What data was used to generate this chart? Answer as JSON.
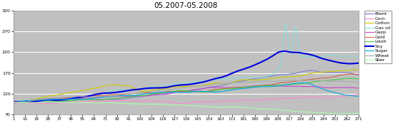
{
  "title": "05.2007-05.2008",
  "xlim": [
    1,
    271
  ],
  "ylim": [
    70,
    320
  ],
  "yticks": [
    70,
    120,
    170,
    220,
    270,
    320
  ],
  "xticks": [
    1,
    10,
    19,
    28,
    37,
    46,
    55,
    64,
    73,
    82,
    91,
    100,
    109,
    118,
    127,
    136,
    145,
    154,
    163,
    172,
    181,
    190,
    199,
    208,
    217,
    226,
    235,
    244,
    253,
    262,
    271
  ],
  "bg_color": "#c0c0c0",
  "grid_color": "#ffffff",
  "series": {
    "Brent": {
      "color": "#8888cc",
      "lw": 1.0
    },
    "Corn": {
      "color": "#ff88cc",
      "lw": 0.8
    },
    "Cotton": {
      "color": "#cccc00",
      "lw": 0.8
    },
    "Gas oil": {
      "color": "#88dddd",
      "lw": 0.8
    },
    "Gazp": {
      "color": "#cc44cc",
      "lw": 0.8
    },
    "Gold": {
      "color": "#cc6644",
      "lw": 0.8
    },
    "Likoh": {
      "color": "#44cc44",
      "lw": 0.8
    },
    "Soy": {
      "color": "#0000dd",
      "lw": 1.5
    },
    "Sugar": {
      "color": "#00aadd",
      "lw": 0.8
    },
    "Wheat": {
      "color": "#aaaaaa",
      "lw": 0.8
    },
    "Sber": {
      "color": "#aaffaa",
      "lw": 0.8
    }
  }
}
